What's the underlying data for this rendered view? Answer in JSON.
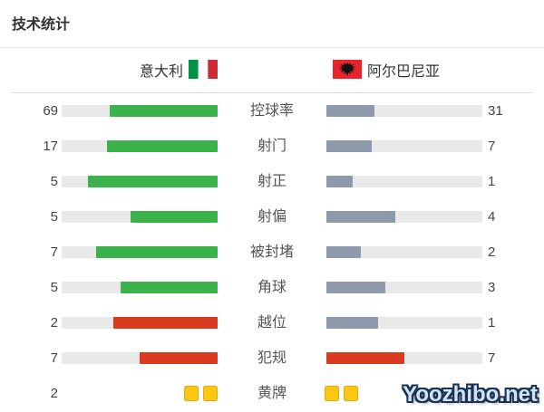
{
  "page": {
    "title": "技术统计",
    "watermark": "Yoozhibo.net"
  },
  "teams": {
    "home": {
      "name": "意大利",
      "flag": "italy-flag"
    },
    "away": {
      "name": "阿尔巴尼亚",
      "flag": "albania-flag"
    }
  },
  "colors": {
    "green": "#3bb24a",
    "slate": "#8e9aab",
    "red": "#da3a20",
    "track": "#e9e9e9",
    "yellow": "#fbc712",
    "italy_green": "#009246",
    "italy_red": "#ce2b37",
    "albania_red": "#e8232a"
  },
  "rows": [
    {
      "type": "bar",
      "label": "控球率",
      "home": 69,
      "away": 31,
      "home_color": "green",
      "away_color": "slate"
    },
    {
      "type": "bar",
      "label": "射门",
      "home": 17,
      "away": 7,
      "home_color": "green",
      "away_color": "slate"
    },
    {
      "type": "bar",
      "label": "射正",
      "home": 5,
      "away": 1,
      "home_color": "green",
      "away_color": "slate"
    },
    {
      "type": "bar",
      "label": "射偏",
      "home": 5,
      "away": 4,
      "home_color": "green",
      "away_color": "slate"
    },
    {
      "type": "bar",
      "label": "被封堵",
      "home": 7,
      "away": 2,
      "home_color": "green",
      "away_color": "slate"
    },
    {
      "type": "bar",
      "label": "角球",
      "home": 5,
      "away": 3,
      "home_color": "green",
      "away_color": "slate"
    },
    {
      "type": "bar",
      "label": "越位",
      "home": 2,
      "away": 1,
      "home_color": "red",
      "away_color": "slate"
    },
    {
      "type": "bar",
      "label": "犯规",
      "home": 7,
      "away": 7,
      "home_color": "red",
      "away_color": "red"
    },
    {
      "type": "cards",
      "label": "黄牌",
      "home": 2,
      "away": 2
    }
  ],
  "chart_data": {
    "type": "bar",
    "title": "技术统计",
    "orientation": "paired-horizontal",
    "categories": [
      "控球率",
      "射门",
      "射正",
      "射偏",
      "被封堵",
      "角球",
      "越位",
      "犯规",
      "黄牌"
    ],
    "series": [
      {
        "name": "意大利",
        "values": [
          69,
          17,
          5,
          5,
          7,
          5,
          2,
          7,
          2
        ]
      },
      {
        "name": "阿尔巴尼亚",
        "values": [
          31,
          7,
          1,
          4,
          2,
          3,
          1,
          7,
          2
        ]
      }
    ],
    "notes": "每行左右条长按双方数值占比填充；越位与犯规用红色，黄牌行以黄牌图标显示",
    "legend_position": "top",
    "grid": false
  }
}
